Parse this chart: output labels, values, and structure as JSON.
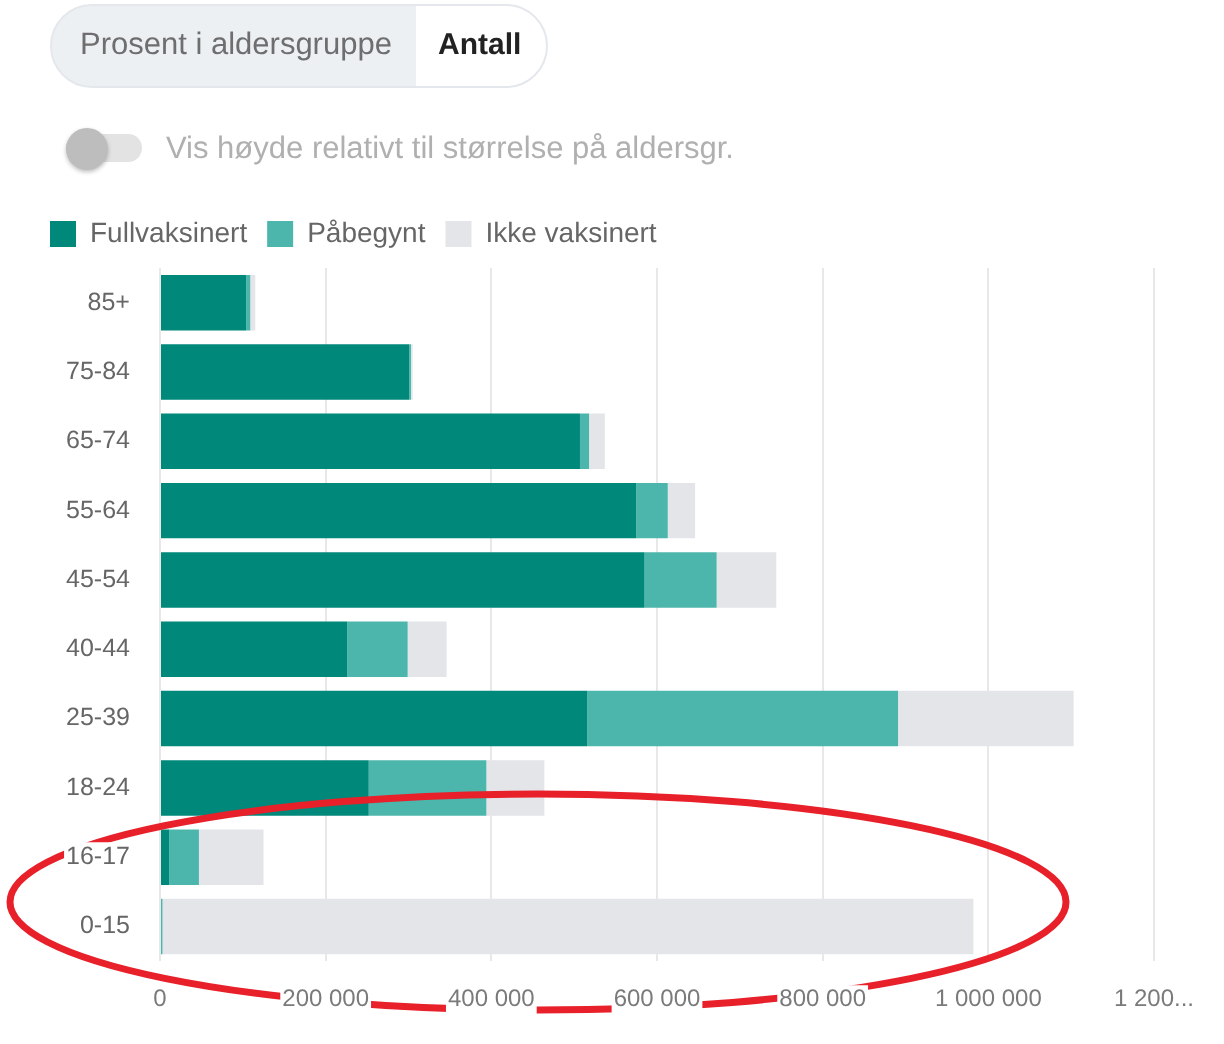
{
  "chart_data": {
    "type": "bar",
    "orientation": "horizontal",
    "stacked": true,
    "categories": [
      "85+",
      "75-84",
      "65-74",
      "55-64",
      "45-54",
      "40-44",
      "25-39",
      "18-24",
      "16-17",
      "0-15"
    ],
    "series": [
      {
        "name": "Fullvaksinert",
        "color": "#00887a",
        "values": [
          104000,
          301000,
          507000,
          575000,
          585000,
          226000,
          516000,
          252000,
          11000,
          0
        ]
      },
      {
        "name": "Påbegynt",
        "color": "#4db6ac",
        "values": [
          5000,
          2000,
          11000,
          38000,
          87000,
          73000,
          375000,
          142000,
          36000,
          3000
        ]
      },
      {
        "name": "Ikke vaksinert",
        "color": "#e4e5e9",
        "values": [
          6000,
          2000,
          19000,
          33000,
          72000,
          47000,
          212000,
          70000,
          78000,
          979000
        ]
      }
    ],
    "xlim": [
      0,
      1200000
    ],
    "xticks": [
      0,
      {
        "value": 200000,
        "label": "200 000"
      },
      {
        "value": 400000,
        "label": "400 000"
      },
      {
        "value": 600000,
        "label": "600 000"
      },
      {
        "value": 800000,
        "label": "800 000"
      },
      {
        "value": 1000000,
        "label": "1 000 000"
      },
      {
        "value": 1200000,
        "label": "1 200..."
      }
    ],
    "grid": "x",
    "legend": "top left",
    "annotations": [
      "Prosent i aldersgruppe",
      "Antall",
      "Vis høyde relativt til størrelse på aldersgr."
    ]
  }
}
